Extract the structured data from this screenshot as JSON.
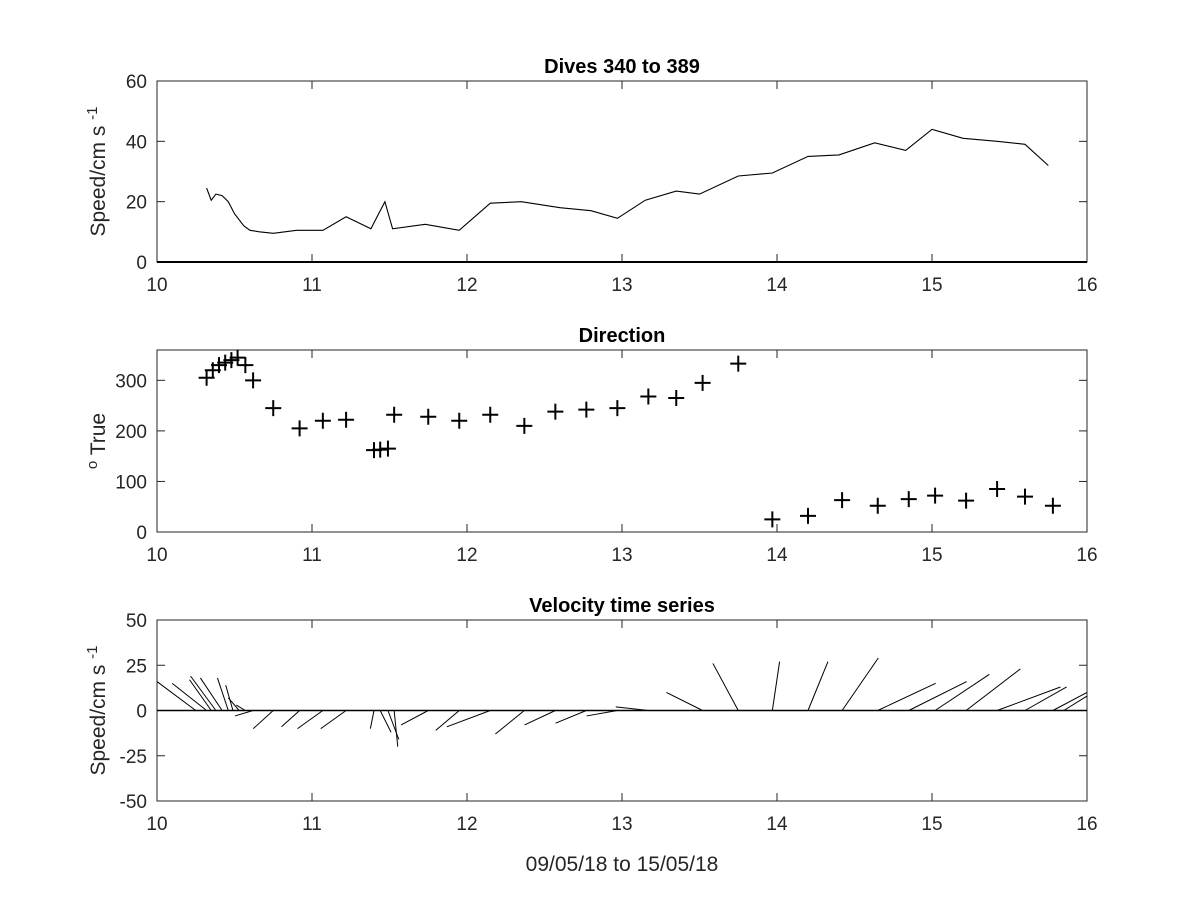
{
  "chart_data": [
    {
      "type": "line",
      "title": "Dives 340 to 389",
      "ylabel": "Speed/cm s",
      "ylabel_superscript": "-1",
      "xlim": [
        10,
        16
      ],
      "ylim": [
        0,
        60
      ],
      "xticks": [
        10,
        11,
        12,
        13,
        14,
        15,
        16
      ],
      "yticks": [
        0,
        20,
        40,
        60
      ],
      "x": [
        10.32,
        10.35,
        10.38,
        10.42,
        10.46,
        10.5,
        10.56,
        10.6,
        10.66,
        10.75,
        10.9,
        11.0,
        11.07,
        11.22,
        11.38,
        11.47,
        11.52,
        11.73,
        11.95,
        12.15,
        12.35,
        12.6,
        12.8,
        12.97,
        13.15,
        13.35,
        13.5,
        13.75,
        13.97,
        14.2,
        14.4,
        14.63,
        14.83,
        15.0,
        15.2,
        15.42,
        15.6,
        15.75
      ],
      "y": [
        24.5,
        20.5,
        22.5,
        22,
        20,
        16,
        12,
        10.5,
        10,
        9.5,
        10.5,
        10.5,
        10.5,
        15,
        11,
        20,
        11,
        12.5,
        10.5,
        19.5,
        20,
        18,
        17,
        14.5,
        20.5,
        23.5,
        22.5,
        28.5,
        29.5,
        35,
        35.5,
        39.5,
        37,
        44,
        41,
        40,
        39,
        32
      ]
    },
    {
      "type": "scatter",
      "title": "Direction",
      "ylabel": "True",
      "ylabel_superscript": "o",
      "marker": "+",
      "xlim": [
        10,
        16
      ],
      "ylim": [
        0,
        360
      ],
      "xticks": [
        10,
        11,
        12,
        13,
        14,
        15,
        16
      ],
      "yticks": [
        0,
        100,
        200,
        300
      ],
      "x": [
        10.32,
        10.36,
        10.4,
        10.44,
        10.48,
        10.52,
        10.57,
        10.62,
        10.75,
        10.92,
        11.07,
        11.22,
        11.4,
        11.44,
        11.49,
        11.53,
        11.75,
        11.95,
        12.15,
        12.37,
        12.57,
        12.77,
        12.97,
        13.17,
        13.35,
        13.52,
        13.75,
        13.97,
        14.2,
        14.42,
        14.65,
        14.85,
        15.02,
        15.22,
        15.42,
        15.6,
        15.78
      ],
      "y": [
        305,
        320,
        330,
        335,
        340,
        345,
        330,
        300,
        245,
        205,
        220,
        222,
        162,
        163,
        165,
        232,
        228,
        220,
        232,
        210,
        238,
        242,
        245,
        268,
        265,
        295,
        333,
        25,
        32,
        63,
        52,
        65,
        72,
        62,
        85,
        70,
        52
      ]
    },
    {
      "type": "quiver",
      "title": "Velocity time series",
      "xlabel": "09/05/18 to 15/05/18",
      "ylabel": "Speed/cm s",
      "ylabel_superscript": "-1",
      "xlim": [
        10,
        16
      ],
      "ylim": [
        -50,
        50
      ],
      "xticks": [
        10,
        11,
        12,
        13,
        14,
        15,
        16
      ],
      "yticks": [
        -50,
        -25,
        0,
        25,
        50
      ],
      "vectors": [
        {
          "x": 10.25,
          "u": -24,
          "v": 16
        },
        {
          "x": 10.32,
          "u": -19,
          "v": 15
        },
        {
          "x": 10.35,
          "u": -12,
          "v": 17
        },
        {
          "x": 10.38,
          "u": -14,
          "v": 19
        },
        {
          "x": 10.42,
          "u": -12,
          "v": 18
        },
        {
          "x": 10.46,
          "u": -6,
          "v": 18
        },
        {
          "x": 10.49,
          "u": -4,
          "v": 14
        },
        {
          "x": 10.53,
          "u": -6,
          "v": 7
        },
        {
          "x": 10.57,
          "u": -5,
          "v": 3
        },
        {
          "x": 10.62,
          "u": -10,
          "v": -3
        },
        {
          "x": 10.75,
          "u": -11,
          "v": -10
        },
        {
          "x": 10.92,
          "u": -10,
          "v": -9
        },
        {
          "x": 11.07,
          "u": -14,
          "v": -10
        },
        {
          "x": 11.22,
          "u": -14,
          "v": -10
        },
        {
          "x": 11.4,
          "u": -2,
          "v": -10
        },
        {
          "x": 11.44,
          "u": 6,
          "v": -12
        },
        {
          "x": 11.49,
          "u": 6,
          "v": -16
        },
        {
          "x": 11.53,
          "u": 2,
          "v": -20
        },
        {
          "x": 11.75,
          "u": -15,
          "v": -8
        },
        {
          "x": 11.95,
          "u": -13,
          "v": -11
        },
        {
          "x": 12.15,
          "u": -24,
          "v": -9
        },
        {
          "x": 12.37,
          "u": -16,
          "v": -13
        },
        {
          "x": 12.57,
          "u": -17,
          "v": -8
        },
        {
          "x": 12.77,
          "u": -17,
          "v": -7
        },
        {
          "x": 12.97,
          "u": -17,
          "v": -3
        },
        {
          "x": 13.17,
          "u": -18,
          "v": 2
        },
        {
          "x": 13.35,
          "u": -18,
          "v": 0
        },
        {
          "x": 13.52,
          "u": -20,
          "v": 10
        },
        {
          "x": 13.75,
          "u": -14,
          "v": 26
        },
        {
          "x": 13.97,
          "u": 4,
          "v": 27
        },
        {
          "x": 14.2,
          "u": 11,
          "v": 27
        },
        {
          "x": 14.42,
          "u": 20,
          "v": 29
        },
        {
          "x": 14.65,
          "u": 32,
          "v": 15
        },
        {
          "x": 14.85,
          "u": 32,
          "v": 16
        },
        {
          "x": 15.02,
          "u": 30,
          "v": 20
        },
        {
          "x": 15.22,
          "u": 30,
          "v": 23
        },
        {
          "x": 15.42,
          "u": 35,
          "v": 13
        },
        {
          "x": 15.6,
          "u": 23,
          "v": 13
        },
        {
          "x": 15.78,
          "u": 30,
          "v": 10
        },
        {
          "x": 15.85,
          "u": 36,
          "v": 8
        }
      ]
    }
  ]
}
